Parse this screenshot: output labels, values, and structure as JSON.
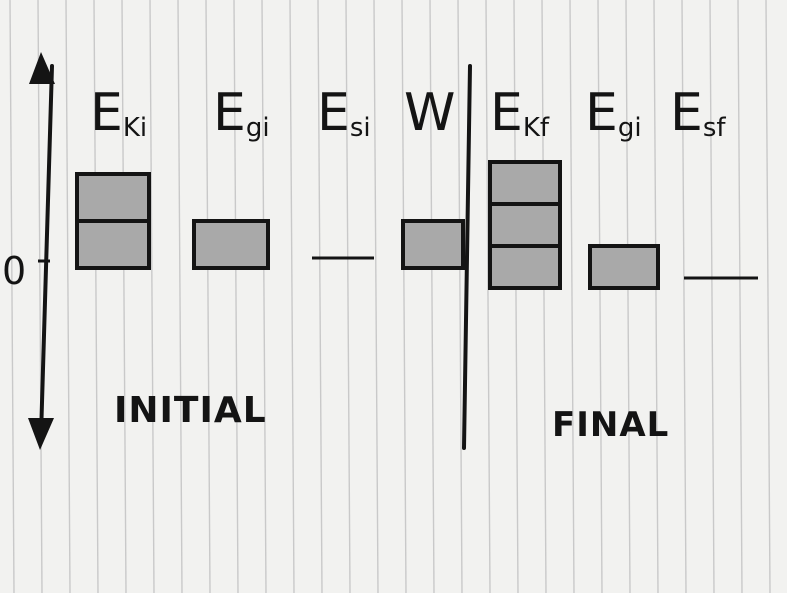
{
  "paper": {
    "background": "#f2f2f0",
    "rule_color": "#c9c9c9",
    "ink": "#141414",
    "bar_fill": "#a9a9a9"
  },
  "axis": {
    "zero_label": "0",
    "direction": "vertical, arrows at both ends"
  },
  "chart_data": {
    "type": "bar",
    "title": "",
    "xlabel": "",
    "ylabel": "",
    "sections": [
      {
        "label": "INITIAL",
        "bars": [
          {
            "symbol": "E",
            "subscript": "Ki",
            "value": 2
          },
          {
            "symbol": "E",
            "subscript": "gi",
            "value": 1
          },
          {
            "symbol": "E",
            "subscript": "si",
            "value": 0
          },
          {
            "symbol": "W",
            "subscript": "",
            "value": 1
          }
        ]
      },
      {
        "label": "FINAL",
        "bars": [
          {
            "symbol": "E",
            "subscript": "Kf",
            "value": 3
          },
          {
            "symbol": "E",
            "subscript": "gi",
            "value": 1
          },
          {
            "symbol": "E",
            "subscript": "sf",
            "value": 0
          }
        ]
      }
    ]
  }
}
